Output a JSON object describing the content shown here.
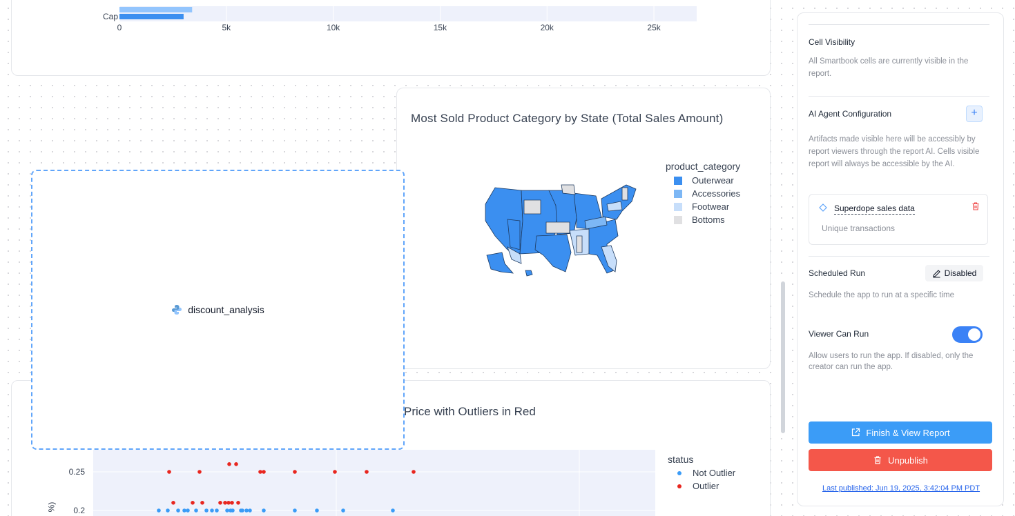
{
  "bar_chart": {
    "chart_data": {
      "type": "bar",
      "orientation": "horizontal",
      "categories": [
        "",
        "Cap"
      ],
      "series": [
        {
          "values": [
            3400,
            3000
          ],
          "color": "#93c5fd"
        }
      ],
      "xlim": [
        0,
        27000
      ],
      "xticks": [
        0,
        5000,
        10000,
        15000,
        20000,
        25000
      ],
      "xtick_labels": [
        "0",
        "5k",
        "10k",
        "15k",
        "20k",
        "25k"
      ],
      "grid": true
    }
  },
  "map_card": {
    "title": "Most Sold Product Category by State (Total Sales Amount)",
    "legend_title": "product_category",
    "legend": [
      {
        "label": "Outerwear",
        "color": "#3b8ff0"
      },
      {
        "label": "Accessories",
        "color": "#7db7f5"
      },
      {
        "label": "Footwear",
        "color": "#c7defa"
      },
      {
        "label": "Bottoms",
        "color": "#e0e0e2"
      }
    ]
  },
  "discount_card": {
    "label": "discount_analysis",
    "icon": "python-icon"
  },
  "scatter_card": {
    "title": "Price with Outliers in Red",
    "legend_title": "status",
    "legend": [
      {
        "label": "Not Outlier",
        "color": "#3b9cf7"
      },
      {
        "label": "Outlier",
        "color": "#e8261f"
      }
    ],
    "ylabel_fragment": "%)",
    "chart_data": {
      "type": "scatter",
      "yticks": [
        0.2,
        0.25
      ],
      "ytick_labels": [
        "0.2",
        "0.25"
      ],
      "series": [
        {
          "name": "Not Outlier",
          "color": "#3b9cf7",
          "x": [
            3,
            16,
            31,
            40,
            45,
            57,
            72,
            80,
            87,
            102,
            107,
            110,
            122,
            124,
            130,
            135,
            155,
            200,
            232,
            270,
            342
          ],
          "y": [
            0.2,
            0.2,
            0.2,
            0.2,
            0.2,
            0.2,
            0.2,
            0.2,
            0.2,
            0.2,
            0.2,
            0.2,
            0.2,
            0.2,
            0.2,
            0.2,
            0.2,
            0.2,
            0.2,
            0.2,
            0.2
          ]
        },
        {
          "name": "Outlier",
          "color": "#e8261f",
          "x": [
            18,
            62,
            150,
            155,
            200,
            258,
            304,
            372,
            24,
            52,
            66,
            92,
            99,
            104,
            109,
            118,
            105,
            115
          ],
          "y": [
            0.25,
            0.25,
            0.25,
            0.25,
            0.25,
            0.25,
            0.25,
            0.25,
            0.21,
            0.21,
            0.21,
            0.21,
            0.21,
            0.21,
            0.21,
            0.21,
            0.26,
            0.26
          ]
        }
      ]
    }
  },
  "panel": {
    "cell_visibility": {
      "title": "Cell Visibility",
      "desc": "All Smartbook cells are currently visible in the report."
    },
    "ai_agent": {
      "title": "AI Agent Configuration",
      "add_label": "+",
      "desc": "Artifacts made visible here will be accessibly by report viewers through the report AI. Cells visible report will always be accessible by the AI.",
      "artifact": {
        "name": "Superdope sales data",
        "desc": "Unique transactions"
      }
    },
    "scheduled_run": {
      "title": "Scheduled Run",
      "button": "Disabled",
      "desc": "Schedule the app to run at a specific time"
    },
    "viewer_can_run": {
      "title": "Viewer Can Run",
      "enabled": true,
      "desc": "Allow users to run the app. If disabled, only the creator can run the app."
    },
    "finish_button": "Finish & View Report",
    "unpublish_button": "Unpublish",
    "last_published": "Last published: Jun 19, 2025, 3:42:04 PM PDT",
    "colors": {
      "primary": "#3b9cf7",
      "danger": "#f4574a"
    }
  }
}
